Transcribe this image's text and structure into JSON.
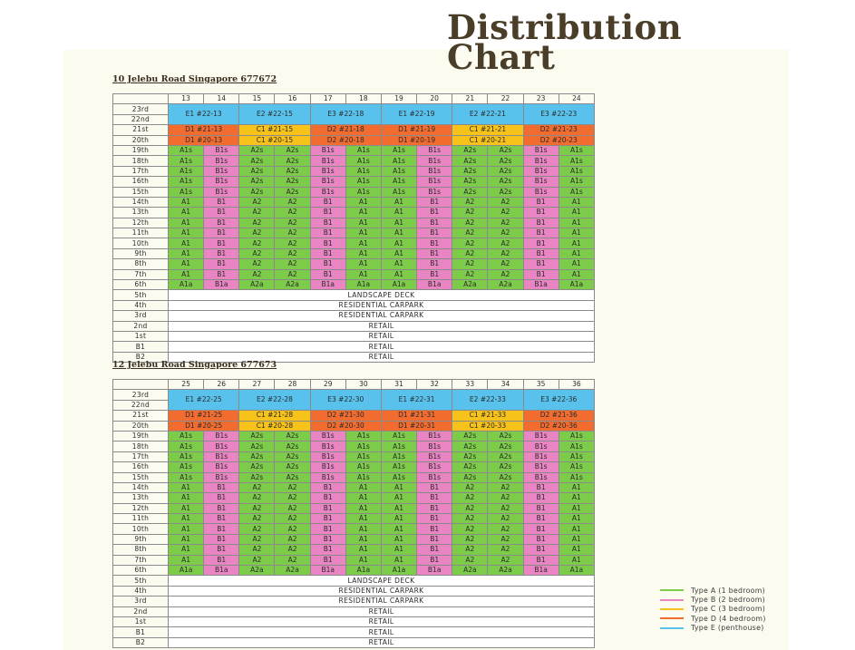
{
  "title": {
    "line1": "Distribution",
    "line2": "Chart"
  },
  "colors": {
    "A": "#7ccc4a",
    "B": "#e985c2",
    "C": "#f7c21a",
    "D": "#f26c30",
    "E": "#59c2ec"
  },
  "floors": [
    "19th",
    "18th",
    "17th",
    "16th",
    "15th",
    "14th",
    "13th",
    "12th",
    "11th",
    "10th",
    "9th",
    "8th",
    "7th",
    "6th"
  ],
  "penthouse_floors": [
    "23rd",
    "22nd"
  ],
  "d_floors": [
    "21st",
    "20th"
  ],
  "lower_levels": [
    {
      "floor": "5th",
      "label": "LANDSCAPE DECK"
    },
    {
      "floor": "4th",
      "label": "RESIDENTIAL CARPARK"
    },
    {
      "floor": "3rd",
      "label": "RESIDENTIAL CARPARK"
    },
    {
      "floor": "2nd",
      "label": "RETAIL"
    },
    {
      "floor": "1st",
      "label": "RETAIL"
    },
    {
      "floor": "B1",
      "label": "RETAIL"
    },
    {
      "floor": "B2",
      "label": "RETAIL"
    }
  ],
  "column_types": [
    "A1",
    "B1",
    "A2",
    "A2",
    "B1",
    "A1",
    "A1",
    "B1",
    "A2",
    "A2",
    "B1",
    "A1"
  ],
  "blocks": [
    {
      "heading": "10 Jelebu Road Singapore 677672",
      "units": [
        "13",
        "14",
        "15",
        "16",
        "17",
        "18",
        "19",
        "20",
        "21",
        "22",
        "23",
        "24"
      ],
      "penthouses": [
        "E1 #22-13",
        "E2 #22-15",
        "E3 #22-18",
        "E1 #22-19",
        "E2 #22-21",
        "E3 #22-23"
      ],
      "row21": [
        "D1 #21-13",
        "C1 #21-15",
        "D2 #21-18",
        "D1 #21-19",
        "C1 #21-21",
        "D2 #21-23"
      ],
      "row20": [
        "D1 #20-13",
        "C1 #20-15",
        "D2 #20-18",
        "D1 #20-19",
        "C1 #20-21",
        "D2 #20-23"
      ]
    },
    {
      "heading": "12 Jelebu Road Singapore 677673",
      "units": [
        "25",
        "26",
        "27",
        "28",
        "29",
        "30",
        "31",
        "32",
        "33",
        "34",
        "35",
        "36"
      ],
      "penthouses": [
        "E1 #22-25",
        "E2 #22-28",
        "E3 #22-30",
        "E1 #22-31",
        "E2 #22-33",
        "E3 #22-36"
      ],
      "row21": [
        "D1 #21-25",
        "C1 #21-28",
        "D2 #21-30",
        "D1 #21-31",
        "C1 #21-33",
        "D2 #21-36"
      ],
      "row20": [
        "D1 #20-25",
        "C1 #20-28",
        "D2 #20-30",
        "D1 #20-31",
        "C1 #20-33",
        "D2 #20-36"
      ]
    }
  ],
  "legend": [
    {
      "label": "Type A (1 bedroom)",
      "color": "#7ccc4a"
    },
    {
      "label": "Type B (2 bedroom)",
      "color": "#e985c2"
    },
    {
      "label": "Type C (3 bedroom)",
      "color": "#f7c21a"
    },
    {
      "label": "Type D (4 bedroom)",
      "color": "#f26c30"
    },
    {
      "label": "Type E (penthouse)",
      "color": "#59c2ec"
    }
  ]
}
